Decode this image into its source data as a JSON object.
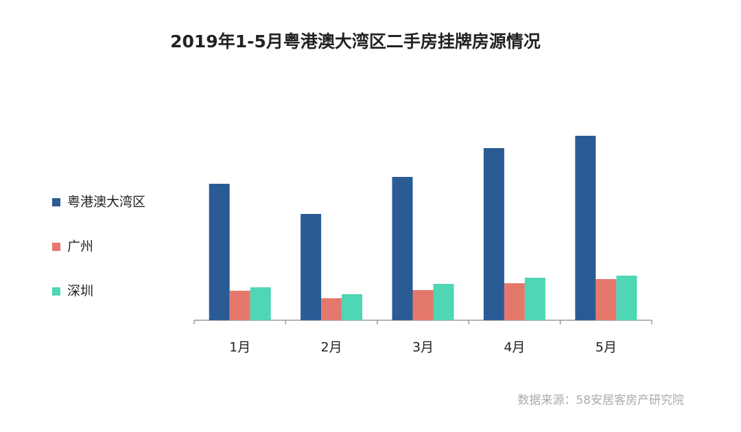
{
  "chart_data": {
    "type": "bar",
    "title": "2019年1-5月粤港澳大湾区二手房挂牌房源情况",
    "categories": [
      "1月",
      "2月",
      "3月",
      "4月",
      "5月"
    ],
    "series": [
      {
        "name": "粤港澳大湾区",
        "color": "#2b5b95",
        "values": [
          199,
          155,
          209,
          251,
          269
        ]
      },
      {
        "name": "广州",
        "color": "#e5786c",
        "values": [
          43,
          32,
          44,
          54,
          60
        ]
      },
      {
        "name": "深圳",
        "color": "#4fd6b4",
        "values": [
          48,
          38,
          53,
          62,
          65
        ]
      }
    ],
    "ylim": [
      0,
      300
    ],
    "legend": "left",
    "source": "数据来源：58安居客房产研究院"
  }
}
